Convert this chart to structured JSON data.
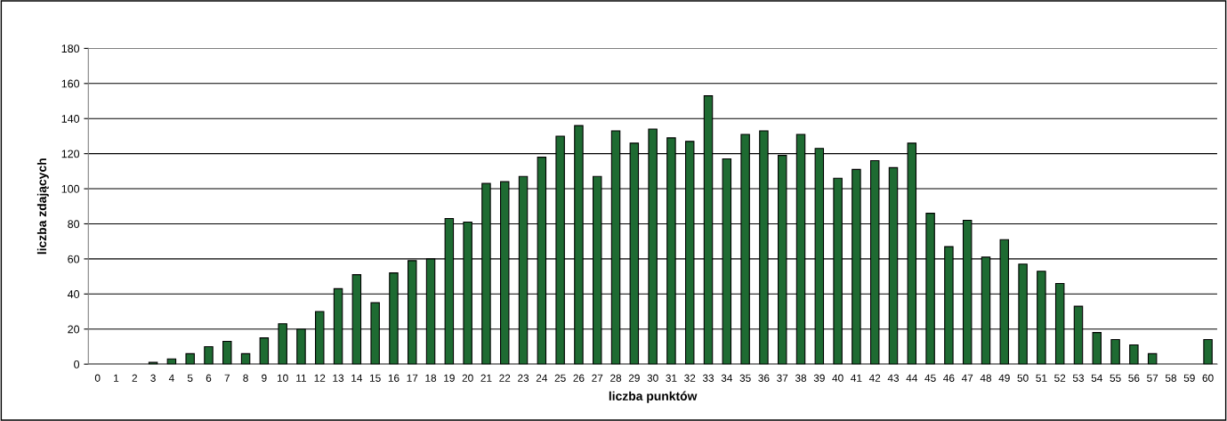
{
  "chart_data": {
    "type": "bar",
    "xlabel": "liczba punktów",
    "ylabel": "liczba zdających",
    "categories": [
      "0",
      "1",
      "2",
      "3",
      "4",
      "5",
      "6",
      "7",
      "8",
      "9",
      "10",
      "11",
      "12",
      "13",
      "14",
      "15",
      "16",
      "17",
      "18",
      "19",
      "20",
      "21",
      "22",
      "23",
      "24",
      "25",
      "26",
      "27",
      "28",
      "29",
      "30",
      "31",
      "32",
      "33",
      "34",
      "35",
      "36",
      "37",
      "38",
      "39",
      "40",
      "41",
      "42",
      "43",
      "44",
      "45",
      "46",
      "47",
      "48",
      "49",
      "50",
      "51",
      "52",
      "53",
      "54",
      "55",
      "56",
      "57",
      "58",
      "59",
      "60"
    ],
    "values": [
      0,
      0,
      0,
      1,
      3,
      6,
      10,
      13,
      6,
      15,
      23,
      20,
      30,
      43,
      51,
      35,
      52,
      59,
      60,
      83,
      81,
      103,
      104,
      107,
      118,
      130,
      136,
      107,
      133,
      126,
      134,
      129,
      127,
      153,
      117,
      131,
      133,
      119,
      131,
      123,
      106,
      111,
      116,
      112,
      126,
      86,
      67,
      82,
      61,
      71,
      57,
      53,
      46,
      33,
      18,
      14,
      11,
      6,
      0,
      0,
      14
    ],
    "color": "#1e6b32",
    "ylim": [
      0,
      180
    ],
    "yticks": [
      0,
      20,
      40,
      60,
      80,
      100,
      120,
      140,
      160,
      180
    ],
    "grid": "y",
    "legend": false
  }
}
